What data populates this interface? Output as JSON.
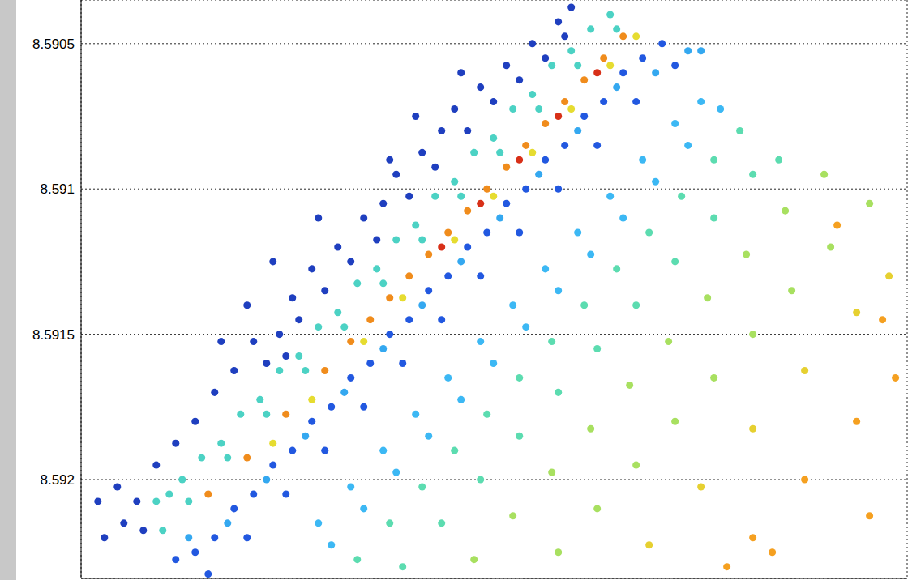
{
  "chart_data": {
    "type": "scatter",
    "marker": "circle",
    "grid": true,
    "tick_labels": "y",
    "xlim": [
      -0.58,
      5.79
    ],
    "xticks": [
      0,
      1,
      2,
      3,
      4,
      5
    ],
    "ylim": [
      8.59035,
      8.59234
    ],
    "yticks": [
      8.5905,
      8.591,
      8.5915,
      8.592
    ],
    "series": [
      {
        "color": "#3cb8f4",
        "x": [
          1.25,
          1.5,
          1.75,
          2,
          2.25,
          2.5,
          2.75,
          3,
          3.25,
          3.5,
          3.75,
          4,
          4.2,
          1.35,
          1.6,
          1.85,
          2.1,
          2.35,
          2.6,
          2.85,
          3.1,
          3.35,
          3.6,
          3.85,
          4.1,
          4.35
        ],
        "values": [
          8.59215,
          8.592025,
          8.5919,
          8.591775,
          8.59165,
          8.591525,
          8.5914,
          8.591275,
          8.59115,
          8.591025,
          8.5909,
          8.590775,
          8.5907,
          8.592225,
          8.5921,
          8.591975,
          8.59185,
          8.591725,
          8.5916,
          8.591475,
          8.59135,
          8.591225,
          8.5911,
          8.590975,
          8.59085,
          8.590725
        ]
      },
      {
        "color": "#5cdcb0",
        "x": [
          1.55,
          1.8,
          2.05,
          2.3,
          2.55,
          2.8,
          3.05,
          3.3,
          3.55,
          3.8,
          4.05,
          4.3,
          4.5,
          1.9,
          2.2,
          2.5,
          2.8,
          3.1,
          3.4,
          3.7,
          4,
          4.3,
          4.6,
          4.8
        ],
        "values": [
          8.592275,
          8.59215,
          8.592025,
          8.5919,
          8.591775,
          8.59165,
          8.591525,
          8.5914,
          8.591275,
          8.59115,
          8.591025,
          8.5909,
          8.5908,
          8.5923,
          8.59215,
          8.592,
          8.59185,
          8.5917,
          8.59155,
          8.5914,
          8.59125,
          8.5911,
          8.59095,
          8.5909
        ]
      },
      {
        "color": "#a8e060",
        "x": [
          2.45,
          2.75,
          3.05,
          3.35,
          3.65,
          3.95,
          4.25,
          4.55,
          4.85,
          5.15,
          3.1,
          3.4,
          3.7,
          4,
          4.3,
          4.6,
          4.9,
          5.2,
          5.5
        ],
        "values": [
          8.592275,
          8.592125,
          8.591975,
          8.591825,
          8.591675,
          8.591525,
          8.591375,
          8.591225,
          8.591075,
          8.59095,
          8.59225,
          8.5921,
          8.59195,
          8.5918,
          8.59165,
          8.5915,
          8.59135,
          8.5912,
          8.59105
        ]
      },
      {
        "color": "#e6d030",
        "x": [
          3.8,
          4.2,
          4.6,
          5,
          5.4,
          5.65
        ],
        "values": [
          8.592225,
          8.592025,
          8.591825,
          8.591625,
          8.591425,
          8.5913
        ]
      },
      {
        "color": "#f5a020",
        "x": [
          4.6,
          5,
          5.4,
          5.7,
          5.25,
          5.6,
          4.75,
          5.5,
          4.4
        ],
        "values": [
          8.5922,
          8.592,
          8.5918,
          8.59165,
          8.591125,
          8.59145,
          8.59225,
          8.592125,
          8.5923
        ]
      },
      {
        "color": "#2258e0",
        "x": [
          0.15,
          0.3,
          0.45,
          0.6,
          0.75,
          0.9,
          1.05,
          1.2,
          1.35,
          1.5,
          1.65,
          1.8,
          1.95,
          2.1,
          2.25,
          2.4,
          2.55,
          2.7,
          2.85,
          3,
          3.15,
          3.3,
          3.45,
          3.6,
          3.75,
          3.9,
          0.4,
          0.7,
          1,
          1.3,
          1.6,
          1.9,
          2.2,
          2.5,
          2.8,
          3.1,
          3.4,
          3.7,
          4
        ],
        "values": [
          8.592275,
          8.59225,
          8.5922,
          8.5921,
          8.59205,
          8.59195,
          8.5919,
          8.5918,
          8.59175,
          8.59165,
          8.5916,
          8.5915,
          8.59145,
          8.59135,
          8.5913,
          8.5912,
          8.59115,
          8.59105,
          8.591,
          8.5909,
          8.59085,
          8.59075,
          8.5907,
          8.5906,
          8.59055,
          8.5905,
          8.592325,
          8.5922,
          8.59205,
          8.5919,
          8.59175,
          8.5916,
          8.59145,
          8.5913,
          8.59115,
          8.591,
          8.59085,
          8.5907,
          8.590575
        ]
      },
      {
        "color": "#34a8f0",
        "x": [
          0.25,
          0.55,
          0.85,
          1.15,
          1.45,
          1.75,
          2.05,
          2.35,
          2.65,
          2.95,
          3.25,
          3.55,
          3.85,
          4.1,
          4.2
        ],
        "values": [
          8.5922,
          8.59215,
          8.592,
          8.59185,
          8.5917,
          8.59155,
          8.5914,
          8.59125,
          8.5911,
          8.59095,
          8.5908,
          8.59065,
          8.5906,
          8.590525,
          8.590525
        ]
      },
      {
        "color": "#4cd2c4",
        "x": [
          0,
          0.1,
          0.2,
          0.35,
          0.5,
          0.65,
          0.8,
          0.95,
          1.1,
          1.25,
          1.4,
          1.55,
          1.7,
          1.85,
          2,
          2.15,
          2.3,
          2.45,
          2.6,
          2.75,
          2.9,
          3.05,
          3.2,
          3.35,
          3.5,
          0.05,
          0.25,
          0.55,
          0.85,
          1.15,
          1.45,
          1.75,
          2.05,
          2.35,
          2.65,
          2.95,
          3.25,
          3.55
        ],
        "values": [
          8.592075,
          8.59205,
          8.592,
          8.591925,
          8.591875,
          8.591775,
          8.591725,
          8.591625,
          8.591575,
          8.591475,
          8.591425,
          8.591325,
          8.591275,
          8.591175,
          8.591125,
          8.591025,
          8.590975,
          8.590875,
          8.590825,
          8.590725,
          8.590675,
          8.590575,
          8.590525,
          8.59045,
          8.5904,
          8.592175,
          8.592075,
          8.591925,
          8.591775,
          8.591625,
          8.591475,
          8.591325,
          8.591175,
          8.591025,
          8.590875,
          8.590725,
          8.590575,
          8.59045
        ]
      },
      {
        "color": "#f08c1c",
        "x": [
          0.4,
          0.7,
          1,
          1.3,
          1.5,
          1.65,
          1.8,
          1.95,
          2.1,
          2.25,
          2.4,
          2.55,
          2.7,
          2.85,
          3,
          3.15,
          3.3,
          3.45,
          3.6
        ],
        "values": [
          8.59205,
          8.591925,
          8.591775,
          8.591625,
          8.591525,
          8.59145,
          8.591375,
          8.5913,
          8.591225,
          8.59115,
          8.591075,
          8.591,
          8.590925,
          8.59085,
          8.590775,
          8.5907,
          8.590625,
          8.59055,
          8.590475
        ]
      },
      {
        "color": "#d83018",
        "x": [
          2.2,
          2.5,
          2.8,
          3.1,
          3.4
        ],
        "values": [
          8.5912,
          8.59105,
          8.5909,
          8.59075,
          8.5906
        ]
      },
      {
        "color": "#e6dc30",
        "x": [
          0.9,
          1.2,
          1.6,
          1.9,
          2.3,
          2.6,
          2.9,
          3.2,
          3.5,
          3.7
        ],
        "values": [
          8.591875,
          8.591725,
          8.591525,
          8.591375,
          8.591175,
          8.591025,
          8.590875,
          8.590725,
          8.590575,
          8.590475
        ]
      },
      {
        "color": "#1f3fbf",
        "x": [
          -0.45,
          -0.4,
          -0.3,
          -0.25,
          -0.15,
          -0.1,
          0,
          0.15,
          0.3,
          0.45,
          0.6,
          0.75,
          0.85,
          0.95,
          1,
          1.1,
          1.05,
          1.2,
          1.3,
          1.4,
          1.5,
          1.6,
          1.7,
          1.75,
          1.85,
          1.95,
          2.05,
          2.15,
          2.2,
          2.3,
          2.4,
          2.5,
          2.6,
          2.7,
          2.8,
          2.9,
          3,
          3.1,
          3.15,
          3.2,
          0.5,
          0.7,
          1.25,
          0.9,
          1.8,
          2.35,
          2
        ],
        "values": [
          8.592075,
          8.5922,
          8.592025,
          8.59215,
          8.592075,
          8.592175,
          8.59195,
          8.591875,
          8.5918,
          8.5917,
          8.591625,
          8.591525,
          8.5916,
          8.5915,
          8.591575,
          8.59145,
          8.591375,
          8.591275,
          8.59135,
          8.5912,
          8.59125,
          8.5911,
          8.591175,
          8.59105,
          8.59095,
          8.591025,
          8.590875,
          8.590925,
          8.5908,
          8.590725,
          8.5908,
          8.59065,
          8.5907,
          8.590575,
          8.590625,
          8.5905,
          8.59055,
          8.590425,
          8.590475,
          8.590375,
          8.591525,
          8.5914,
          8.5911,
          8.59125,
          8.5909,
          8.5906,
          8.59075
        ]
      }
    ]
  }
}
